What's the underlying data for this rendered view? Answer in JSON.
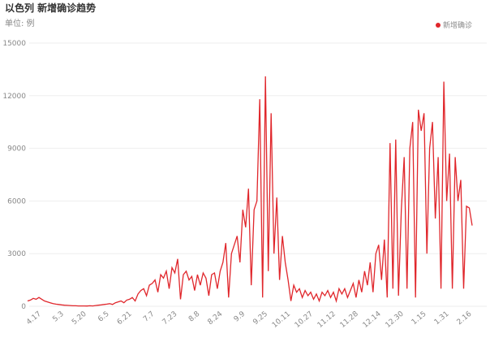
{
  "chart_data": {
    "type": "line",
    "title": "以色列 新增确诊趋势",
    "subtitle": "单位: 例",
    "categories": [
      null,
      null,
      null,
      null,
      "4.17",
      null,
      null,
      null,
      null,
      null,
      null,
      null,
      "5.3",
      null,
      null,
      null,
      null,
      null,
      null,
      null,
      "5.20",
      null,
      null,
      null,
      null,
      null,
      null,
      null,
      "6.5",
      null,
      null,
      null,
      null,
      null,
      null,
      null,
      "6.21",
      null,
      null,
      null,
      null,
      null,
      null,
      null,
      "7.7",
      null,
      null,
      null,
      null,
      null,
      null,
      null,
      "7.23",
      null,
      null,
      null,
      null,
      null,
      null,
      null,
      "8.8",
      null,
      null,
      null,
      null,
      null,
      null,
      null,
      "8.24",
      null,
      null,
      null,
      null,
      null,
      null,
      null,
      "9.9",
      null,
      null,
      null,
      null,
      null,
      null,
      null,
      "9.25",
      null,
      null,
      null,
      null,
      null,
      null,
      null,
      "10.11",
      null,
      null,
      null,
      null,
      null,
      null,
      null,
      "10.27",
      null,
      null,
      null,
      null,
      null,
      null,
      null,
      "11.12",
      null,
      null,
      null,
      null,
      null,
      null,
      null,
      "11.28",
      null,
      null,
      null,
      null,
      null,
      null,
      null,
      "12.14",
      null,
      null,
      null,
      null,
      null,
      null,
      null,
      "12.30",
      null,
      null,
      null,
      null,
      null,
      null,
      null,
      "1.15",
      null,
      null,
      null,
      null,
      null,
      null,
      null,
      "1.31",
      null,
      null,
      null,
      null,
      null,
      null,
      null,
      "2.16",
      null
    ],
    "series": [
      {
        "name": "新增确诊",
        "color": "#e0262b",
        "values": [
          300,
          350,
          450,
          400,
          500,
          400,
          300,
          250,
          200,
          150,
          120,
          100,
          80,
          60,
          50,
          40,
          30,
          30,
          20,
          20,
          20,
          15,
          30,
          20,
          40,
          60,
          80,
          100,
          120,
          150,
          100,
          200,
          250,
          300,
          200,
          350,
          400,
          500,
          300,
          700,
          900,
          1000,
          600,
          1200,
          1300,
          1500,
          800,
          1800,
          1600,
          2000,
          1000,
          2200,
          1900,
          2700,
          400,
          1800,
          2000,
          1500,
          1700,
          900,
          1800,
          1200,
          1900,
          1600,
          600,
          1800,
          1900,
          1000,
          2000,
          2500,
          3600,
          500,
          3000,
          3500,
          4000,
          2500,
          5500,
          4500,
          6700,
          1200,
          5500,
          6000,
          11800,
          500,
          13100,
          2000,
          11000,
          3000,
          6200,
          1500,
          4000,
          2500,
          1500,
          300,
          1200,
          800,
          1000,
          500,
          900,
          600,
          800,
          400,
          700,
          300,
          800,
          600,
          900,
          500,
          800,
          300,
          1000,
          700,
          1000,
          500,
          900,
          1300,
          500,
          1500,
          800,
          2000,
          1200,
          2500,
          800,
          3000,
          3500,
          1500,
          3800,
          500,
          9300,
          1000,
          9500,
          600,
          5500,
          8500,
          1000,
          9000,
          10500,
          500,
          11200,
          10000,
          11000,
          3000,
          9000,
          10500,
          5000,
          8500,
          1000,
          12800,
          6000,
          8700,
          1000,
          8500,
          6000,
          7200,
          1000,
          5700,
          5600,
          4600
        ]
      }
    ],
    "ylim": [
      0,
      15000
    ],
    "yticks": [
      0,
      3000,
      6000,
      9000,
      12000,
      15000
    ],
    "grid": true
  }
}
